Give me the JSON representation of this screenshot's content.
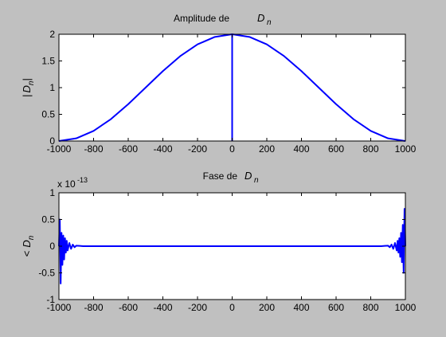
{
  "window": {
    "background": "#c0c0c0"
  },
  "chart_data": [
    {
      "type": "line",
      "title": "Amplitude de",
      "title_symbol": "D",
      "title_subscript": "n",
      "ylabel_prefix": "|",
      "ylabel_symbol": "D",
      "ylabel_subscript": "n",
      "ylabel_suffix": "|",
      "xlim": [
        -1000,
        1000
      ],
      "ylim": [
        0,
        2
      ],
      "xticks": [
        "-1000",
        "-800",
        "-600",
        "-400",
        "-200",
        "0",
        "200",
        "400",
        "600",
        "800",
        "1000"
      ],
      "yticks": [
        "0",
        "0.5",
        "1",
        "1.5",
        "2"
      ],
      "grid": false,
      "line_color": "#0000ff",
      "series": [
        {
          "x": [
            -1000,
            -900,
            -800,
            -700,
            -600,
            -500,
            -400,
            -300,
            -200,
            -100,
            0,
            100,
            200,
            300,
            400,
            500,
            600,
            700,
            800,
            900,
            1000
          ],
          "y": [
            0,
            0.05,
            0.19,
            0.41,
            0.69,
            1.0,
            1.31,
            1.59,
            1.81,
            1.95,
            2.0,
            1.95,
            1.81,
            1.59,
            1.31,
            1.0,
            0.69,
            0.41,
            0.19,
            0.05,
            0
          ]
        }
      ],
      "annotations": [
        {
          "type": "vertical_line",
          "x": 0,
          "y_from": 0,
          "y_to": 2
        }
      ]
    },
    {
      "type": "line",
      "title": "Fase de",
      "title_symbol": "D",
      "title_subscript": "n",
      "ylabel_prefix": "<",
      "ylabel_symbol": "D",
      "ylabel_subscript": "n",
      "scale_prefix": "x 10",
      "scale_exponent": "-13",
      "xlim": [
        -1000,
        1000
      ],
      "ylim": [
        -1,
        1
      ],
      "xticks": [
        "-1000",
        "-800",
        "-600",
        "-400",
        "-200",
        "0",
        "200",
        "400",
        "600",
        "800",
        "1000"
      ],
      "yticks": [
        "-1",
        "-0.5",
        "0",
        "0.5",
        "1"
      ],
      "grid": false,
      "line_color": "#0000ff",
      "series": [
        {
          "x": [
            -1000,
            -995,
            -990,
            -985,
            -980,
            -975,
            -970,
            -965,
            -960,
            -955,
            -950,
            -940,
            -930,
            -920,
            -910,
            -900,
            -880,
            -860,
            0,
            860,
            880,
            900,
            910,
            920,
            930,
            940,
            950,
            955,
            960,
            965,
            970,
            975,
            980,
            985,
            990,
            995,
            1000
          ],
          "y": [
            0,
            0.5,
            -0.7,
            0.25,
            -0.35,
            0.2,
            -0.25,
            0.15,
            -0.12,
            0.1,
            -0.08,
            0.06,
            -0.05,
            0.03,
            -0.02,
            0.01,
            0.005,
            0,
            0,
            0,
            0.005,
            0.01,
            -0.02,
            0.03,
            -0.05,
            0.06,
            -0.08,
            0.1,
            -0.12,
            0.15,
            -0.2,
            0.25,
            -0.3,
            0.4,
            -0.5,
            0.7,
            0
          ]
        }
      ]
    }
  ]
}
